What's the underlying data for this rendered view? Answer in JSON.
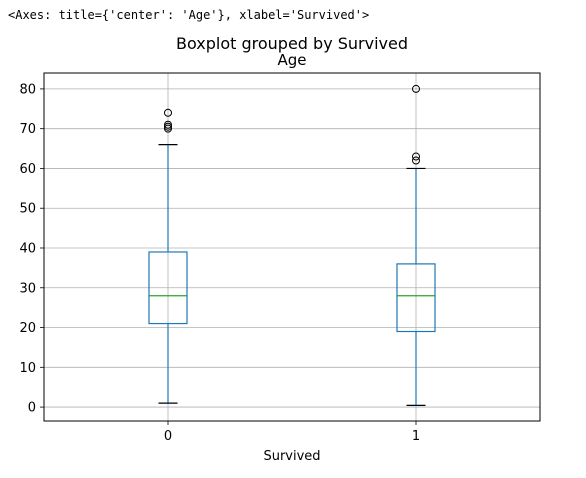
{
  "output_repr": "<Axes: title={'center': 'Age'}, xlabel='Survived'>",
  "colors": {
    "box": "#1f77b4",
    "median": "#2ca02c",
    "grid": "#b0b0b0",
    "frame": "#000000"
  },
  "chart_data": {
    "type": "boxplot",
    "suptitle": "Boxplot grouped by Survived",
    "title": "Age",
    "xlabel": "Survived",
    "ylabel": "",
    "ylim": [
      -3.5,
      84
    ],
    "yticks": [
      0,
      10,
      20,
      30,
      40,
      50,
      60,
      70,
      80
    ],
    "grid": true,
    "groups": [
      {
        "category": "0",
        "whisker_low": 1,
        "q1": 21,
        "median": 28,
        "q3": 39,
        "whisker_high": 66,
        "outliers": [
          70,
          70.5,
          71,
          74
        ]
      },
      {
        "category": "1",
        "whisker_low": 0.42,
        "q1": 19,
        "median": 28,
        "q3": 36,
        "whisker_high": 60,
        "outliers": [
          62,
          63,
          80
        ]
      }
    ]
  }
}
